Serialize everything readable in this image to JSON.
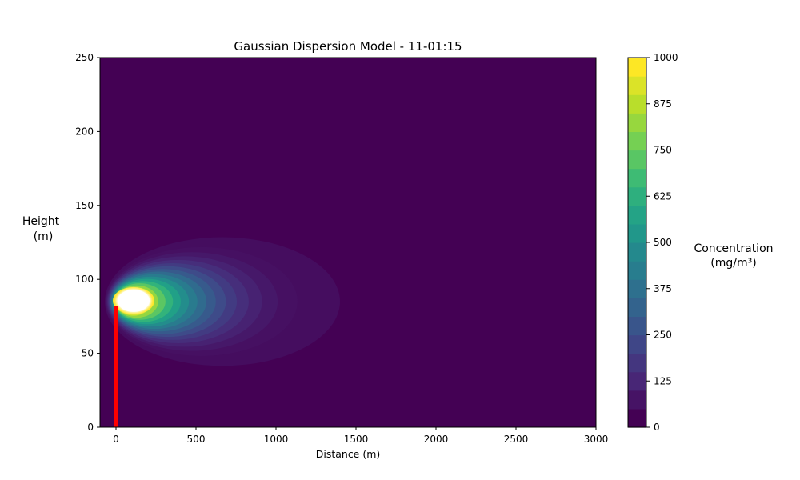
{
  "chart_data": {
    "type": "heatmap",
    "title": "Gaussian Dispersion Model - 11-01:15",
    "xlabel": "Distance (m)",
    "ylabel_line1": "Height",
    "ylabel_line2": "(m)",
    "xlim": [
      -100,
      3000
    ],
    "ylim": [
      0,
      250
    ],
    "xticks": [
      0,
      500,
      1000,
      1500,
      2000,
      2500,
      3000
    ],
    "yticks": [
      0,
      50,
      100,
      150,
      200,
      250
    ],
    "grid": false,
    "colormap": "viridis",
    "plume": {
      "source_x": 0,
      "centerline_height": 85,
      "core_extent_x": [
        0,
        220
      ],
      "outer_extent_x": [
        0,
        1400
      ],
      "outer_extent_y": [
        41,
        128
      ],
      "saturated_color": "#ffffff"
    },
    "stack": {
      "x": 0,
      "height": 82,
      "color": "#ff0000"
    },
    "colorbar": {
      "label_line1": "Concentration",
      "label_line2": "(mg/m³)",
      "range": [
        0,
        1000
      ],
      "ticks": [
        0,
        125,
        250,
        375,
        500,
        625,
        750,
        875,
        1000
      ],
      "levels": 20,
      "placement": "right"
    },
    "background_color": "#440154"
  }
}
